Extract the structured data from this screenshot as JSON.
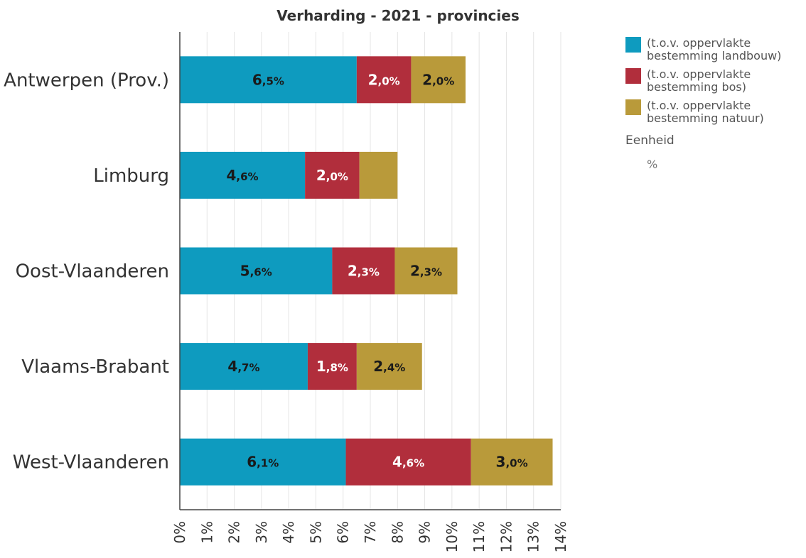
{
  "chart_data": {
    "type": "bar",
    "orientation": "horizontal",
    "stacked": true,
    "title": "Verharding - 2021 - provincies",
    "categories": [
      "Antwerpen (Prov.)",
      "Limburg",
      "Oost-Vlaanderen",
      "Vlaams-Brabant",
      "West-Vlaanderen"
    ],
    "series": [
      {
        "name": "(t.o.v. oppervlakte\nbestemming landbouw)",
        "color": "#0e9bbf",
        "label_color": "#1a1a1a",
        "values": [
          6.5,
          4.6,
          5.6,
          4.7,
          6.1
        ],
        "labels": [
          "6,5%",
          "4,6%",
          "5,6%",
          "4,7%",
          "6,1%"
        ]
      },
      {
        "name": "(t.o.v. oppervlakte\nbestemming bos)",
        "color": "#b12e3c",
        "label_color": "#ffffff",
        "values": [
          2.0,
          2.0,
          2.3,
          1.8,
          4.6
        ],
        "labels": [
          "2,0%",
          "2,0%",
          "2,3%",
          "1,8%",
          "4,6%"
        ]
      },
      {
        "name": "(t.o.v. oppervlakte\nbestemming natuur)",
        "color": "#b99a3a",
        "label_color": "#1a1a1a",
        "values": [
          2.0,
          1.4,
          2.3,
          2.4,
          3.0
        ],
        "labels": [
          "2,0%",
          "",
          "2,3%",
          "2,4%",
          "3,0%"
        ]
      }
    ],
    "xlim": [
      0,
      14
    ],
    "x_ticks": [
      "0%",
      "1%",
      "2%",
      "3%",
      "4%",
      "5%",
      "6%",
      "7%",
      "8%",
      "9%",
      "10%",
      "11%",
      "12%",
      "13%",
      "14%"
    ],
    "grid": true,
    "legend_position": "right",
    "unit_label": "Eenheid",
    "unit": "%"
  }
}
